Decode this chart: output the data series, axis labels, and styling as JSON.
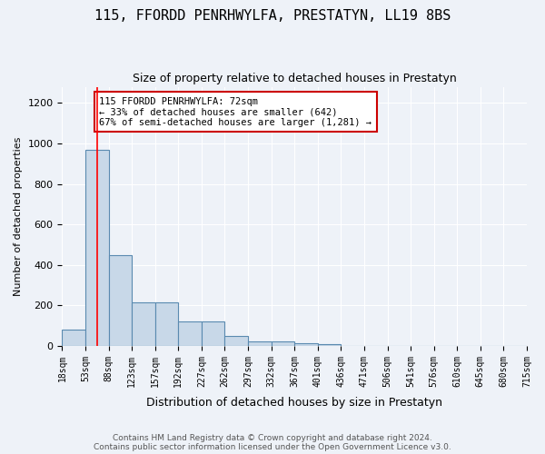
{
  "title": "115, FFORDD PENRHWYLFA, PRESTATYN, LL19 8BS",
  "subtitle": "Size of property relative to detached houses in Prestatyn",
  "xlabel": "Distribution of detached houses by size in Prestatyn",
  "ylabel": "Number of detached properties",
  "bar_values": [
    80,
    970,
    450,
    215,
    215,
    120,
    120,
    48,
    22,
    22,
    15,
    10,
    0,
    0,
    0,
    0,
    0,
    0,
    0,
    0
  ],
  "bin_labels": [
    "18sqm",
    "53sqm",
    "88sqm",
    "123sqm",
    "157sqm",
    "192sqm",
    "227sqm",
    "262sqm",
    "297sqm",
    "332sqm",
    "367sqm",
    "401sqm",
    "436sqm",
    "471sqm",
    "506sqm",
    "541sqm",
    "576sqm",
    "610sqm",
    "645sqm",
    "680sqm",
    "715sqm"
  ],
  "bar_color": "#c8d8e8",
  "bar_edge_color": "#5a8ab0",
  "background_color": "#eef2f8",
  "grid_color": "#ffffff",
  "red_line_x": 1.5,
  "annotation_text": "115 FFORDD PENRHWYLFA: 72sqm\n← 33% of detached houses are smaller (642)\n67% of semi-detached houses are larger (1,281) →",
  "annotation_box_color": "#ffffff",
  "annotation_box_edge": "#cc0000",
  "ylim": [
    0,
    1280
  ],
  "yticks": [
    0,
    200,
    400,
    600,
    800,
    1000,
    1200
  ],
  "footer": "Contains HM Land Registry data © Crown copyright and database right 2024.\nContains public sector information licensed under the Open Government Licence v3.0."
}
